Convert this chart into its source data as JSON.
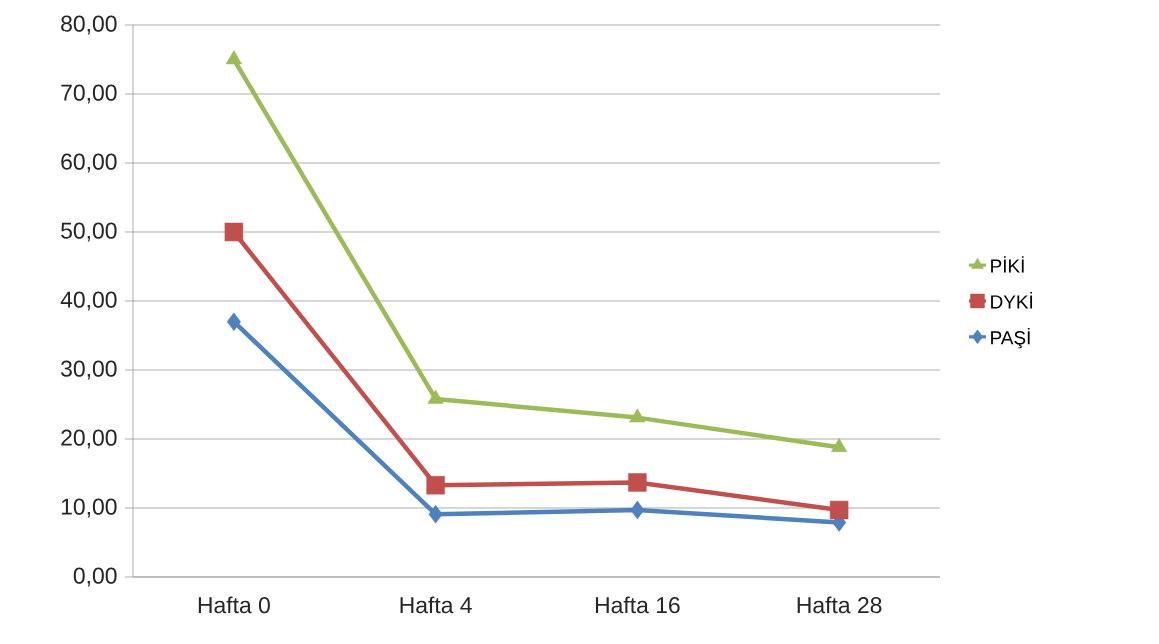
{
  "chart_data": {
    "type": "line",
    "categories": [
      "Hafta 0",
      "Hafta 4",
      "Hafta 16",
      "Hafta 28"
    ],
    "series": [
      {
        "name": "PİKİ",
        "color": "#9bbb59",
        "marker": "triangle",
        "values": [
          75,
          25.8,
          23.1,
          18.8
        ]
      },
      {
        "name": "DYKİ",
        "color": "#c0504d",
        "marker": "square",
        "values": [
          50,
          13.3,
          13.7,
          9.7
        ]
      },
      {
        "name": "PAŞİ",
        "color": "#4f81bd",
        "marker": "diamond",
        "values": [
          37,
          9.1,
          9.7,
          7.9
        ]
      }
    ],
    "ylim": [
      0,
      80
    ],
    "yticks": [
      {
        "value": 0,
        "label": "0,00"
      },
      {
        "value": 10,
        "label": "10,00"
      },
      {
        "value": 20,
        "label": "20,00"
      },
      {
        "value": 30,
        "label": "30,00"
      },
      {
        "value": 40,
        "label": "40,00"
      },
      {
        "value": 50,
        "label": "50,00"
      },
      {
        "value": 60,
        "label": "60,00"
      },
      {
        "value": 70,
        "label": "70,00"
      },
      {
        "value": 80,
        "label": "80,00"
      }
    ],
    "grid": "y",
    "legend": "right"
  }
}
